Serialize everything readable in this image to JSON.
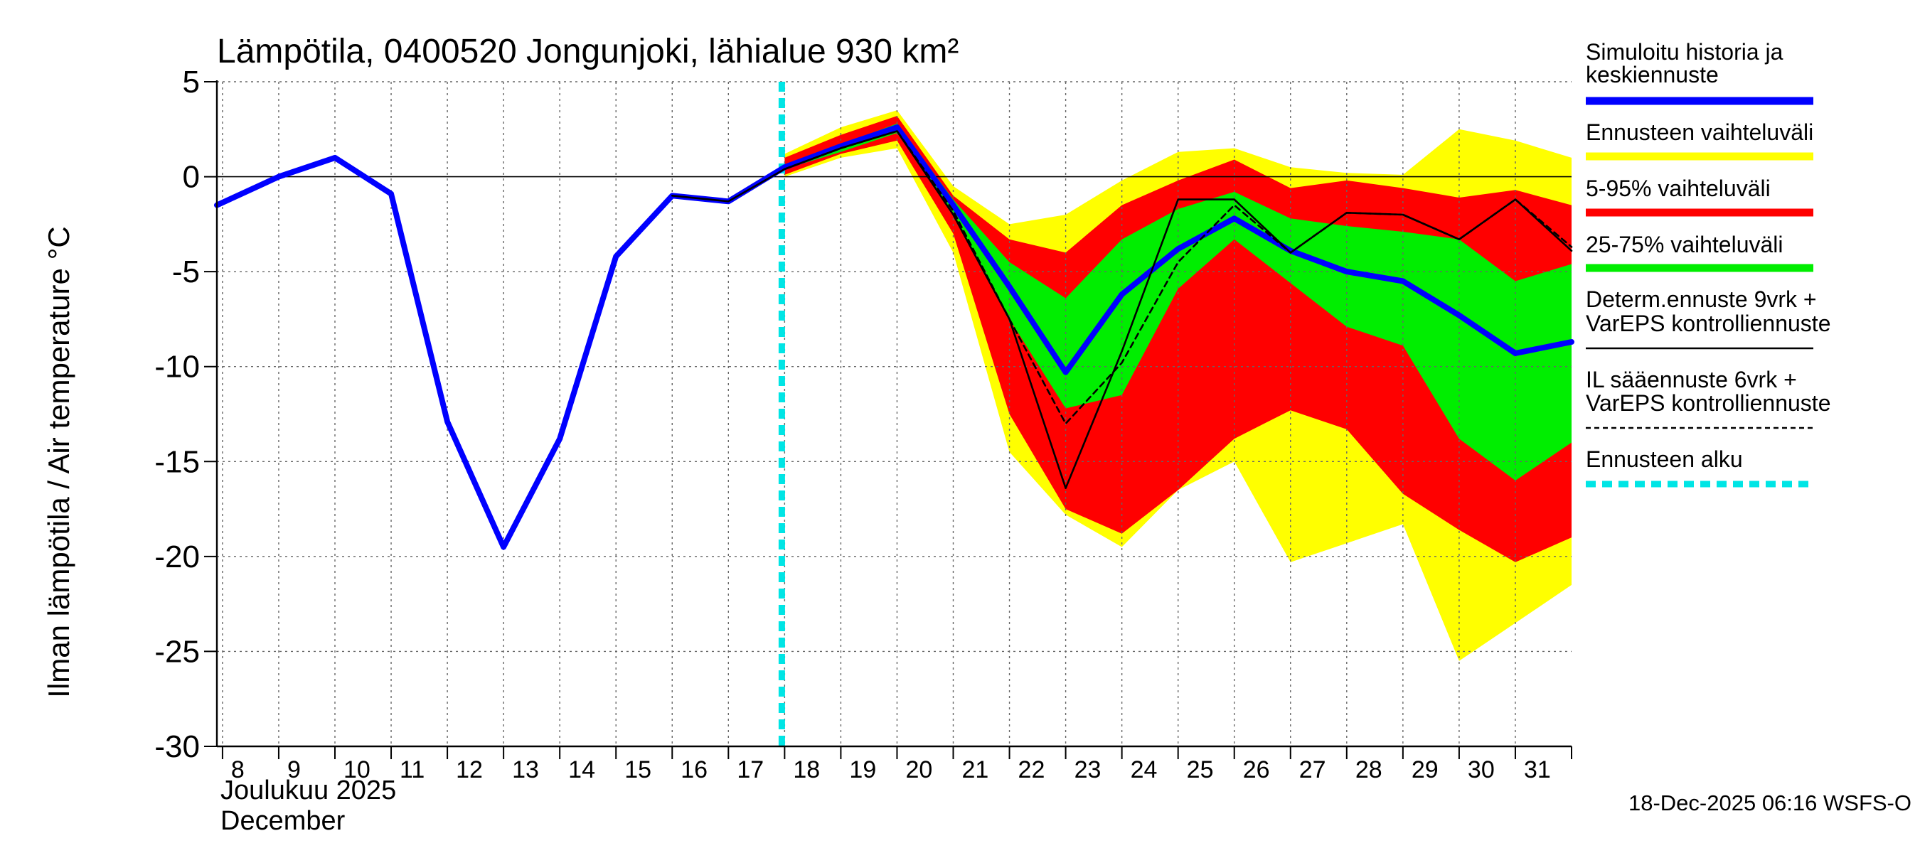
{
  "chart_data": {
    "type": "area",
    "title": "Lämpötila, 0400520 Jongunjoki, lähialue 930 km²",
    "ylabel": "Ilman lämpötila / Air temperature   °C",
    "xlabel_fi": "Joulukuu  2025",
    "xlabel_en": "December",
    "footer": "18-Dec-2025 06:16 WSFS-O",
    "ylim": [
      -30,
      5
    ],
    "xlim": [
      7.9,
      32
    ],
    "yticks": [
      5,
      0,
      -5,
      -10,
      -15,
      -20,
      -25,
      -30
    ],
    "ytick_labels": [
      "5",
      "0",
      "-5",
      "-10",
      "-15",
      "-20",
      "-25",
      "-30"
    ],
    "x_tick_labels": [
      "8",
      "9",
      "10",
      "11",
      "12",
      "13",
      "14",
      "15",
      "16",
      "17",
      "18",
      "19",
      "20",
      "21",
      "22",
      "23",
      "24",
      "25",
      "26",
      "27",
      "28",
      "29",
      "30",
      "31"
    ],
    "forecast_start_x": 17.95,
    "series": [
      {
        "name": "Simuloitu historia ja keskiennuste",
        "color": "#0000ff",
        "x": [
          7.9,
          9,
          10,
          11,
          12,
          13,
          14,
          15,
          16,
          17,
          18,
          19,
          20,
          21,
          22,
          23,
          24,
          25,
          26,
          27,
          28,
          29,
          30,
          31,
          32
        ],
        "values": [
          -1.5,
          0.0,
          1.0,
          -0.9,
          -12.9,
          -19.5,
          -13.8,
          -4.2,
          -1.0,
          -1.3,
          0.5,
          1.6,
          2.6,
          -1.5,
          -5.8,
          -10.3,
          -6.2,
          -3.8,
          -2.2,
          -3.9,
          -5.0,
          -5.5,
          -7.3,
          -9.3,
          -8.7
        ]
      },
      {
        "name": "Determ.ennuste 9vrk + VarEPS kontrolliennuste",
        "color": "#000000",
        "style": "solid",
        "x": [
          16,
          17,
          18,
          19,
          20,
          21,
          22,
          23,
          24,
          25,
          26,
          27,
          28,
          29,
          30,
          31,
          32
        ],
        "values": [
          -1.0,
          -1.3,
          0.4,
          1.5,
          2.4,
          -2.0,
          -7.5,
          -16.4,
          -9.2,
          -1.2,
          -1.2,
          -4.0,
          -1.9,
          -2.0,
          -3.3,
          -1.2,
          -3.9
        ]
      },
      {
        "name": "IL sääennuste 6vrk + VarEPS kontrolliennuste",
        "color": "#000000",
        "style": "dashed",
        "x": [
          18,
          19,
          20,
          21,
          22,
          23,
          24,
          25,
          26,
          27,
          28,
          29,
          30,
          31,
          32
        ],
        "values": [
          0.4,
          1.5,
          2.4,
          -1.8,
          -7.5,
          -13.0,
          -9.8,
          -4.5,
          -1.5,
          -4.0,
          -1.9,
          -2.0,
          -3.3,
          -1.2,
          -3.7
        ]
      }
    ],
    "bands": [
      {
        "name": "Ennusteen vaihteluväli",
        "color": "#ffff00",
        "x": [
          18,
          19,
          20,
          21,
          22,
          23,
          24,
          25,
          26,
          27,
          28,
          29,
          30,
          31,
          32
        ],
        "upper": [
          1.2,
          2.6,
          3.5,
          -0.5,
          -2.5,
          -2.0,
          -0.2,
          1.3,
          1.5,
          0.5,
          0.2,
          0.1,
          2.5,
          1.9,
          1.0
        ],
        "lower": [
          0.0,
          1.0,
          1.5,
          -4.0,
          -14.5,
          -17.8,
          -19.5,
          -16.5,
          -15.0,
          -20.3,
          -19.3,
          -18.3,
          -25.5,
          -23.5,
          -21.5
        ]
      },
      {
        "name": "5-95% vaihteluväli",
        "color": "#ff0000",
        "x": [
          18,
          19,
          20,
          21,
          22,
          23,
          24,
          25,
          26,
          27,
          28,
          29,
          30,
          31,
          32
        ],
        "upper": [
          1.0,
          2.2,
          3.2,
          -1.0,
          -3.3,
          -4.0,
          -1.5,
          -0.2,
          0.9,
          -0.6,
          -0.2,
          -0.6,
          -1.1,
          -0.7,
          -1.5
        ],
        "lower": [
          0.1,
          1.2,
          1.9,
          -3.0,
          -12.5,
          -17.5,
          -18.8,
          -16.5,
          -13.8,
          -12.3,
          -13.3,
          -16.7,
          -18.6,
          -20.3,
          -19.0
        ]
      },
      {
        "name": "25-75% vaihteluväli",
        "color": "#00ee00",
        "x": [
          18,
          19,
          20,
          21,
          22,
          23,
          24,
          25,
          26,
          27,
          28,
          29,
          30,
          31,
          32
        ],
        "upper": [
          0.6,
          1.7,
          2.8,
          -1.2,
          -4.5,
          -6.4,
          -3.3,
          -1.7,
          -0.8,
          -2.2,
          -2.6,
          -2.9,
          -3.3,
          -5.5,
          -4.6
        ],
        "lower": [
          0.4,
          1.3,
          2.3,
          -1.9,
          -7.5,
          -12.2,
          -11.5,
          -5.9,
          -3.3,
          -5.6,
          -7.9,
          -8.9,
          -13.8,
          -16.0,
          -14.0
        ]
      }
    ],
    "legend": [
      {
        "label_lines": [
          "Simuloitu historia ja",
          "keskiennuste"
        ],
        "color": "#0000ff",
        "style": "thick"
      },
      {
        "label_lines": [
          "Ennusteen vaihteluväli"
        ],
        "color": "#ffff00",
        "style": "thick"
      },
      {
        "label_lines": [
          "5-95% vaihteluväli"
        ],
        "color": "#ff0000",
        "style": "thick"
      },
      {
        "label_lines": [
          "25-75% vaihteluväli"
        ],
        "color": "#00ee00",
        "style": "thick"
      },
      {
        "label_lines": [
          "Determ.ennuste 9vrk +",
          "VarEPS kontrolliennuste"
        ],
        "color": "#000000",
        "style": "thin"
      },
      {
        "label_lines": [
          "IL sääennuste 6vrk  +",
          "  VarEPS kontrolliennuste"
        ],
        "color": "#000000",
        "style": "dashed"
      },
      {
        "label_lines": [
          "Ennusteen alku"
        ],
        "color": "#00e5e5",
        "style": "cyan-dashed"
      }
    ],
    "legend_position": "right"
  }
}
